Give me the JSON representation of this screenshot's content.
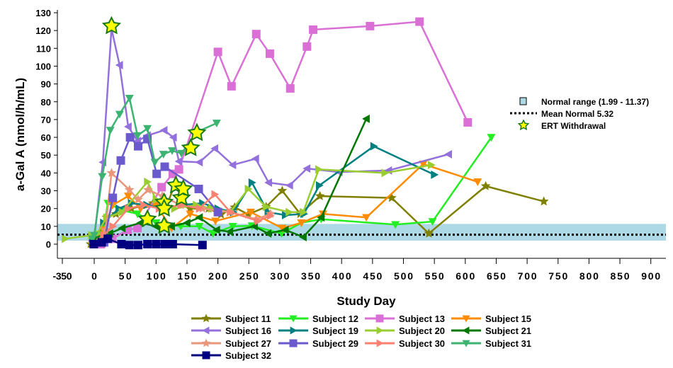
{
  "chart_data": {
    "type": "line",
    "title": "",
    "xlabel": "Study Day",
    "ylabel": "a-Gal A (nmol/h/mL)",
    "xlim": [
      -350,
      920
    ],
    "ylim": [
      -5,
      130
    ],
    "x_axis_break": "compressed negative range (-350 to 0)",
    "x_ticks": [
      -350,
      0,
      50,
      100,
      150,
      200,
      250,
      300,
      350,
      400,
      450,
      500,
      550,
      600,
      650,
      700,
      750,
      800,
      850,
      900
    ],
    "y_ticks": [
      0,
      10,
      20,
      30,
      40,
      50,
      60,
      70,
      80,
      90,
      100,
      110,
      120,
      130
    ],
    "grid": false,
    "reference": {
      "normal_range": {
        "label": "Normal range (1.99 - 11.37)",
        "low": 1.99,
        "high": 11.37,
        "color": "#add8e6"
      },
      "mean_normal": {
        "label": "Mean Normal 5.32",
        "value": 5.32,
        "color": "#000000"
      },
      "ert_withdrawal": {
        "label": "ERT Withdrawal",
        "marker": "star",
        "fill": "#ffff00",
        "stroke": "#1a7a1a",
        "points": [
          [
            28,
            122.5
          ],
          [
            86,
            14
          ],
          [
            113,
            23.5
          ],
          [
            113,
            20
          ],
          [
            113,
            10.3
          ],
          [
            132,
            33
          ],
          [
            141,
            26
          ],
          [
            144,
            31
          ],
          [
            156,
            54
          ],
          [
            166,
            62.5
          ]
        ]
      }
    },
    "legend_position": "bottom",
    "series": [
      {
        "name": "Subject 11",
        "color": "#808000",
        "marker": "star",
        "points": [
          [
            -40,
            0
          ],
          [
            -20,
            0
          ],
          [
            5,
            3
          ],
          [
            20,
            15
          ],
          [
            35,
            17
          ],
          [
            60,
            20
          ],
          [
            95,
            23
          ],
          [
            115,
            20
          ],
          [
            130,
            33
          ],
          [
            155,
            20
          ],
          [
            185,
            20
          ],
          [
            205,
            16.7
          ],
          [
            227,
            20.7
          ],
          [
            249,
            16.7
          ],
          [
            278,
            21
          ],
          [
            304,
            30
          ],
          [
            333,
            17
          ],
          [
            365,
            27
          ],
          [
            481,
            26
          ],
          [
            541,
            6
          ],
          [
            633,
            32.6
          ],
          [
            727,
            24
          ]
        ]
      },
      {
        "name": "Subject 12",
        "color": "#22ee22",
        "marker": "triangle-down",
        "points": [
          [
            -20,
            3
          ],
          [
            0,
            4
          ],
          [
            15,
            8
          ],
          [
            22,
            23
          ],
          [
            45,
            19
          ],
          [
            70,
            17
          ],
          [
            100,
            12
          ],
          [
            140,
            10
          ],
          [
            170,
            10
          ],
          [
            192,
            6
          ],
          [
            224,
            10
          ],
          [
            255,
            10.3
          ],
          [
            303,
            6
          ],
          [
            335,
            12
          ],
          [
            367,
            14
          ],
          [
            487,
            11
          ],
          [
            547,
            12.7
          ],
          [
            642,
            60
          ]
        ]
      },
      {
        "name": "Subject 13",
        "color": "#da70d6",
        "marker": "square",
        "points": [
          [
            11,
            0
          ],
          [
            29,
            3
          ],
          [
            54,
            8
          ],
          [
            70,
            9
          ],
          [
            109,
            32
          ],
          [
            127,
            39.5
          ],
          [
            137,
            42
          ],
          [
            200,
            108
          ],
          [
            222,
            88.7
          ],
          [
            262,
            118
          ],
          [
            284,
            107
          ],
          [
            317,
            87.5
          ],
          [
            344,
            111
          ],
          [
            354,
            120.5
          ],
          [
            446,
            122.5
          ],
          [
            526,
            125
          ],
          [
            604,
            68.4
          ]
        ]
      },
      {
        "name": "Subject 15",
        "color": "#ff8c00",
        "marker": "triangle-down",
        "points": [
          [
            -20,
            0
          ],
          [
            15,
            8
          ],
          [
            30,
            22
          ],
          [
            55,
            27
          ],
          [
            75,
            20
          ],
          [
            100,
            22
          ],
          [
            125,
            9
          ],
          [
            155,
            17
          ],
          [
            196,
            13
          ],
          [
            253,
            18
          ],
          [
            304,
            9
          ],
          [
            335,
            12
          ],
          [
            370,
            17
          ],
          [
            440,
            15
          ],
          [
            532,
            45
          ],
          [
            620,
            35
          ]
        ]
      },
      {
        "name": "Subject 16",
        "color": "#9370db",
        "marker": "triangle-left",
        "points": [
          [
            -25,
            2
          ],
          [
            0,
            3
          ],
          [
            14,
            46
          ],
          [
            28,
            121
          ],
          [
            41,
            100.6
          ],
          [
            55,
            66
          ],
          [
            70,
            58
          ],
          [
            86,
            61
          ],
          [
            113,
            64
          ],
          [
            128,
            60
          ],
          [
            137,
            46.5
          ],
          [
            170,
            46
          ],
          [
            195,
            53.7
          ],
          [
            224,
            44.5
          ],
          [
            261,
            48
          ],
          [
            282,
            34.6
          ],
          [
            316,
            33
          ],
          [
            344,
            42.5
          ],
          [
            396,
            40.5
          ],
          [
            476,
            41.4
          ],
          [
            573,
            50.5
          ]
        ]
      },
      {
        "name": "Subject 19",
        "color": "#008080",
        "marker": "triangle-right",
        "points": [
          [
            -20,
            2
          ],
          [
            0,
            3
          ],
          [
            15,
            12
          ],
          [
            40,
            20
          ],
          [
            60,
            23
          ],
          [
            85,
            22
          ],
          [
            110,
            20
          ],
          [
            140,
            22
          ],
          [
            175,
            23
          ],
          [
            200,
            20
          ],
          [
            225,
            18
          ],
          [
            255,
            34.6
          ],
          [
            281,
            18
          ],
          [
            309,
            16.3
          ],
          [
            339,
            17
          ],
          [
            364,
            33
          ],
          [
            452,
            55
          ],
          [
            550,
            39
          ]
        ]
      },
      {
        "name": "Subject 20",
        "color": "#9acd32",
        "marker": "triangle-right",
        "points": [
          [
            -320,
            3
          ],
          [
            -30,
            5
          ],
          [
            5,
            6
          ],
          [
            20,
            15
          ],
          [
            45,
            18
          ],
          [
            86,
            35
          ],
          [
            100,
            25
          ],
          [
            130,
            20
          ],
          [
            165,
            22
          ],
          [
            190,
            20
          ],
          [
            220,
            18
          ],
          [
            249,
            31
          ],
          [
            278,
            21
          ],
          [
            315,
            18
          ],
          [
            338,
            18
          ],
          [
            363,
            42
          ],
          [
            470,
            40
          ],
          [
            545,
            44.5
          ]
        ]
      },
      {
        "name": "Subject 21",
        "color": "#007800",
        "marker": "triangle-left",
        "points": [
          [
            -10,
            2
          ],
          [
            10,
            4
          ],
          [
            25,
            6
          ],
          [
            45,
            9
          ],
          [
            75,
            12
          ],
          [
            100,
            10
          ],
          [
            125,
            10
          ],
          [
            150,
            12
          ],
          [
            170,
            15
          ],
          [
            198,
            8
          ],
          [
            219,
            7
          ],
          [
            259,
            10
          ],
          [
            281,
            6
          ],
          [
            309,
            8
          ],
          [
            338,
            4
          ],
          [
            367,
            15
          ],
          [
            440,
            70.4
          ]
        ]
      },
      {
        "name": "Subject 27",
        "color": "#e9967a",
        "marker": "star",
        "points": [
          [
            -15,
            0
          ],
          [
            5,
            1
          ],
          [
            18,
            8
          ],
          [
            28,
            40
          ],
          [
            57,
            30.5
          ],
          [
            71,
            25
          ],
          [
            87,
            30.5
          ],
          [
            110,
            27
          ],
          [
            140,
            22
          ],
          [
            175,
            20
          ],
          [
            220,
            18
          ],
          [
            262,
            14
          ],
          [
            285,
            17
          ]
        ]
      },
      {
        "name": "Subject 29",
        "color": "#6a5acd",
        "marker": "square",
        "points": [
          [
            16,
            1
          ],
          [
            30,
            26
          ],
          [
            43,
            47
          ],
          [
            58,
            60
          ],
          [
            71,
            55
          ],
          [
            86,
            59
          ],
          [
            101,
            39.5
          ],
          [
            114,
            43.5
          ],
          [
            169,
            31
          ],
          [
            200,
            18
          ]
        ]
      },
      {
        "name": "Subject 30",
        "color": "#fa8072",
        "marker": "triangle-right",
        "points": [
          [
            -10,
            0
          ],
          [
            15,
            5
          ],
          [
            30,
            10
          ],
          [
            55,
            20
          ],
          [
            80,
            22
          ],
          [
            105,
            20
          ],
          [
            140,
            22
          ],
          [
            170,
            20
          ],
          [
            195,
            28
          ],
          [
            220,
            18
          ],
          [
            265,
            13
          ],
          [
            285,
            16
          ]
        ]
      },
      {
        "name": "Subject 31",
        "color": "#3cb371",
        "marker": "triangle-down",
        "points": [
          [
            -20,
            3
          ],
          [
            0,
            5
          ],
          [
            13,
            38
          ],
          [
            26,
            64
          ],
          [
            41,
            73
          ],
          [
            57,
            82
          ],
          [
            70,
            61
          ],
          [
            86,
            65
          ],
          [
            98,
            46
          ],
          [
            112,
            50.5
          ],
          [
            126,
            52.5
          ],
          [
            141,
            51
          ],
          [
            166,
            63
          ],
          [
            198,
            68
          ]
        ]
      },
      {
        "name": "Subject 32",
        "color": "#000080",
        "marker": "square",
        "points": [
          [
            -5,
            0
          ],
          [
            12,
            1
          ],
          [
            22,
            3
          ],
          [
            44,
            0
          ],
          [
            57,
            -0.5
          ],
          [
            71,
            -0.5
          ],
          [
            86,
            0
          ],
          [
            100,
            0
          ],
          [
            114,
            0
          ],
          [
            127,
            0
          ],
          [
            175,
            -0.5
          ]
        ]
      }
    ]
  }
}
